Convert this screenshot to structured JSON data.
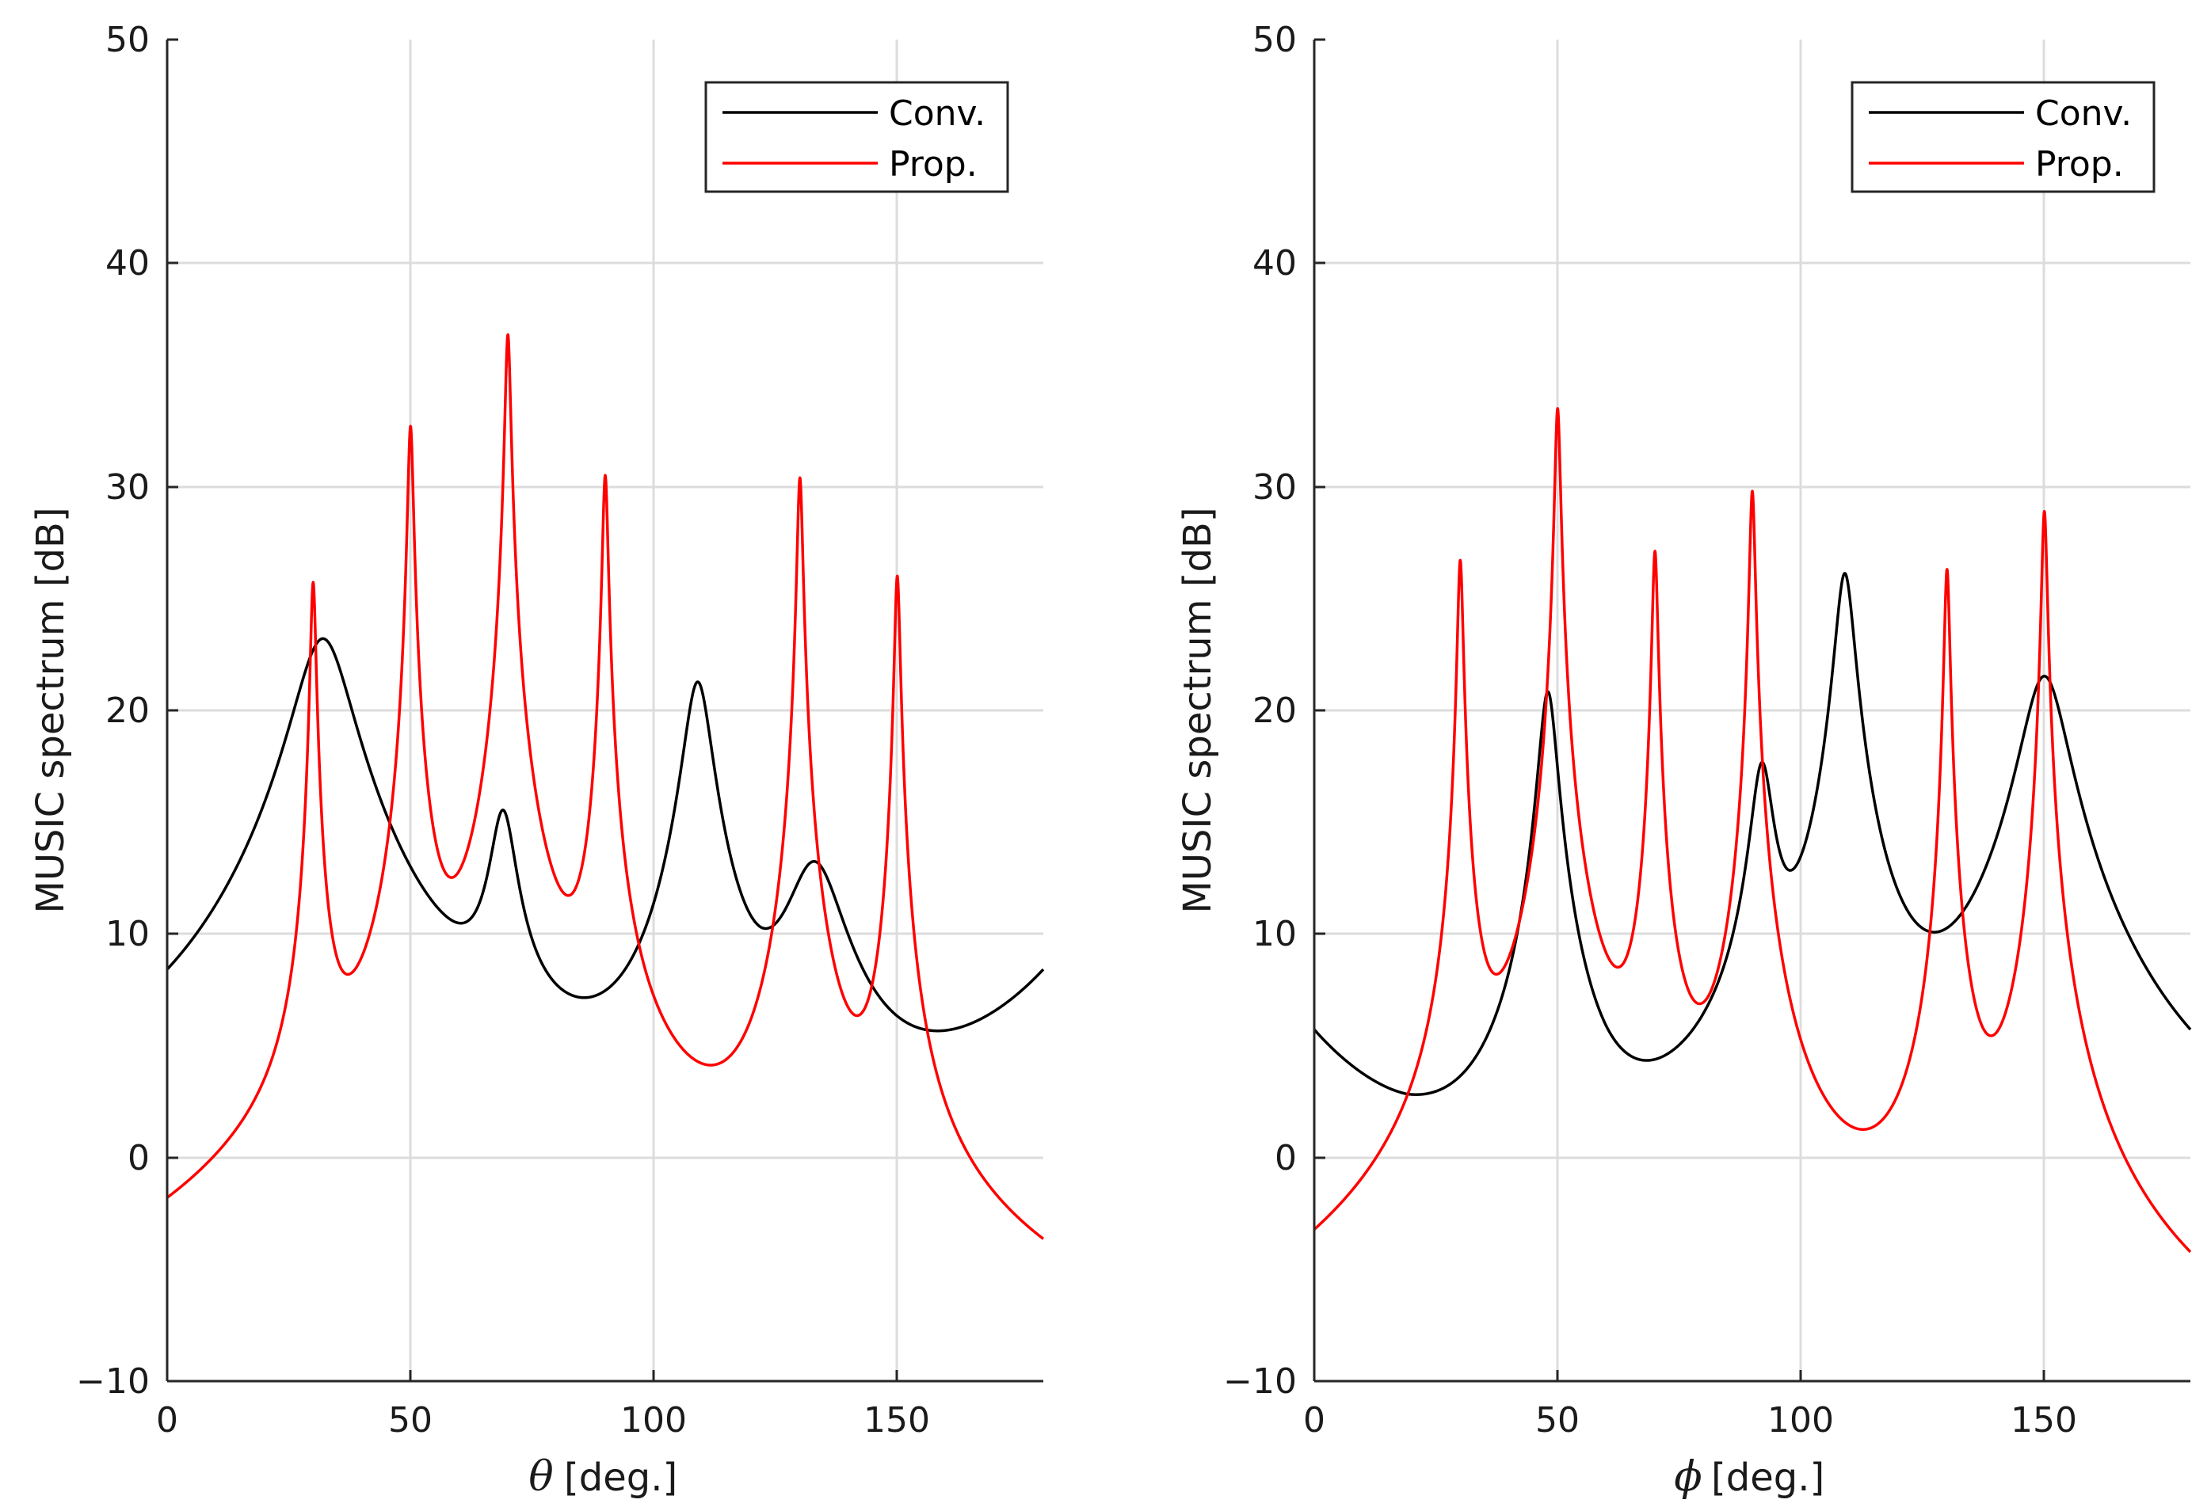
{
  "chart_data": [
    {
      "type": "line",
      "panel": "left",
      "xlabel_symbol": "θ",
      "xlabel_unit": "[deg.]",
      "ylabel": "MUSIC spectrum [dB]",
      "xlim": [
        0,
        180
      ],
      "ylim": [
        -10,
        50
      ],
      "xticks": [
        0,
        50,
        100,
        150
      ],
      "xtick_labels": [
        "0",
        "50",
        "100",
        "150"
      ],
      "yticks": [
        -10,
        0,
        10,
        20,
        30,
        40,
        50
      ],
      "ytick_labels": [
        "−10",
        "0",
        "10",
        "20",
        "30",
        "40",
        "50"
      ],
      "grid": true,
      "legend_position": "top-right",
      "series": [
        {
          "name": "Conv.",
          "color": "#000000",
          "model": "peaks",
          "base": -45.1,
          "periodic": true,
          "peaks": [
            {
              "x": 32,
              "height": 68.3,
              "width": 5.7
            },
            {
              "x": 69,
              "height": 59.9,
              "width": 2.6
            },
            {
              "x": 109,
              "height": 66.3,
              "width": 2.8
            },
            {
              "x": 133,
              "height": 57.7,
              "width": 5.8
            }
          ]
        },
        {
          "name": "Prop.",
          "color": "#ff0000",
          "model": "peaks",
          "base": -52.8,
          "periodic": false,
          "peaks": [
            {
              "x": 30,
              "height": 78.5,
              "width": 0.53
            },
            {
              "x": 50,
              "height": 85.5,
              "width": 0.53
            },
            {
              "x": 70,
              "height": 89.6,
              "width": 0.53
            },
            {
              "x": 90,
              "height": 83.3,
              "width": 0.53
            },
            {
              "x": 130,
              "height": 83.2,
              "width": 0.53
            },
            {
              "x": 150,
              "height": 78.8,
              "width": 0.53
            }
          ]
        }
      ]
    },
    {
      "type": "line",
      "panel": "right",
      "xlabel_symbol": "ϕ",
      "xlabel_unit": "[deg.]",
      "ylabel": "MUSIC spectrum [dB]",
      "xlim": [
        0,
        180
      ],
      "ylim": [
        -10,
        50
      ],
      "xticks": [
        0,
        50,
        100,
        150
      ],
      "xtick_labels": [
        "0",
        "50",
        "100",
        "150"
      ],
      "yticks": [
        -10,
        0,
        10,
        20,
        30,
        40,
        50
      ],
      "ytick_labels": [
        "−10",
        "0",
        "10",
        "20",
        "30",
        "40",
        "50"
      ],
      "grid": true,
      "legend_position": "top-right",
      "series": [
        {
          "name": "Conv.",
          "color": "#000000",
          "model": "peaks",
          "base": -52.4,
          "periodic": true,
          "peaks": [
            {
              "x": 48,
              "height": 73.2,
              "width": 1.8
            },
            {
              "x": 92,
              "height": 69.6,
              "width": 2.2
            },
            {
              "x": 109,
              "height": 78.5,
              "width": 1.9
            },
            {
              "x": 150,
              "height": 73.9,
              "width": 4.6
            }
          ]
        },
        {
          "name": "Prop.",
          "color": "#ff0000",
          "model": "peaks",
          "base": -52.8,
          "periodic": false,
          "peaks": [
            {
              "x": 30,
              "height": 79.5,
              "width": 0.53
            },
            {
              "x": 50,
              "height": 86.3,
              "width": 0.53
            },
            {
              "x": 70,
              "height": 79.9,
              "width": 0.53
            },
            {
              "x": 90,
              "height": 82.6,
              "width": 0.53
            },
            {
              "x": 130,
              "height": 79.1,
              "width": 0.53
            },
            {
              "x": 150,
              "height": 81.7,
              "width": 0.53
            }
          ]
        }
      ]
    }
  ]
}
